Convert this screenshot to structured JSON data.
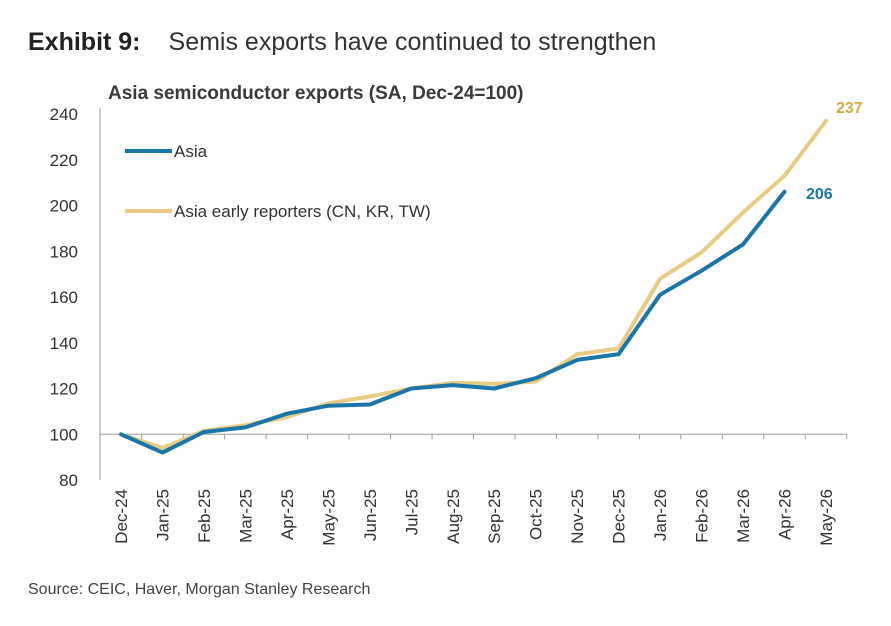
{
  "header": {
    "exhibit_number": "Exhibit 9:",
    "exhibit_title": "Semis exports have continued to strengthen"
  },
  "source": "Source: CEIC, Haver, Morgan Stanley Research",
  "chart_data": {
    "type": "line",
    "title": "Asia semiconductor exports (SA, Dec-24=100)",
    "xlabel": "",
    "ylabel": "",
    "categories": [
      "Dec-24",
      "Jan-25",
      "Feb-25",
      "Mar-25",
      "Apr-25",
      "May-25",
      "Jun-25",
      "Jul-25",
      "Aug-25",
      "Sep-25",
      "Oct-25",
      "Nov-25",
      "Dec-25",
      "Jan-26",
      "Feb-26",
      "Mar-26",
      "Apr-26",
      "May-26"
    ],
    "ylim": [
      80,
      240
    ],
    "yticks": [
      80,
      100,
      120,
      140,
      160,
      180,
      200,
      220,
      240
    ],
    "grid": false,
    "legend": "top-left",
    "series": [
      {
        "name": "Asia",
        "color": "#1a75a8",
        "values": [
          100,
          92,
          101,
          103,
          109,
          112.5,
          113,
          120,
          121.5,
          120,
          124.5,
          132.5,
          135,
          161,
          171.5,
          183,
          206,
          null
        ],
        "end_label": "206"
      },
      {
        "name": "Asia early reporters (CN, KR, TW)",
        "color": "#e8cc84",
        "values": [
          100,
          94,
          101.5,
          104,
          107.5,
          113.5,
          116.5,
          120,
          122.5,
          122,
          123,
          135,
          137.5,
          168,
          179.5,
          197,
          213,
          237
        ],
        "end_label": "237"
      }
    ],
    "end_label_colors": [
      "#1a75a8",
      "#d4ab3c"
    ]
  }
}
